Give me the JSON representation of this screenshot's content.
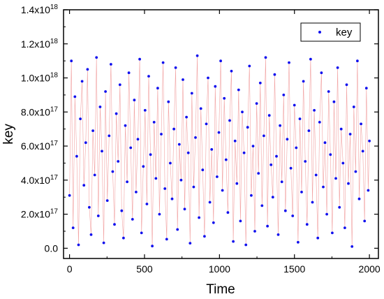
{
  "chart_data": {
    "type": "scatter",
    "title": "",
    "xlabel": "Time",
    "ylabel": "key",
    "xlim": [
      -40,
      2060
    ],
    "ylim": [
      -6e+16,
      1.4e+18
    ],
    "x_ticks": [
      {
        "value": 0,
        "label": "0"
      },
      {
        "value": 500,
        "label": "500"
      },
      {
        "value": 1000,
        "label": "1000"
      },
      {
        "value": 1500,
        "label": "1500"
      },
      {
        "value": 2000,
        "label": "2000"
      }
    ],
    "y_ticks": [
      {
        "value": 0.0,
        "mantissa": "0.0",
        "exponent": ""
      },
      {
        "value": 2e+17,
        "mantissa": "2.0x10",
        "exponent": "17"
      },
      {
        "value": 4e+17,
        "mantissa": "4.0x10",
        "exponent": "17"
      },
      {
        "value": 6e+17,
        "mantissa": "6.0x10",
        "exponent": "17"
      },
      {
        "value": 8e+17,
        "mantissa": "8.0x10",
        "exponent": "17"
      },
      {
        "value": 1e+18,
        "mantissa": "1.0x10",
        "exponent": "18"
      },
      {
        "value": 1.2e+18,
        "mantissa": "1.2x10",
        "exponent": "18"
      },
      {
        "value": 1.4e+18,
        "mantissa": "1.4x10",
        "exponent": "18"
      }
    ],
    "legend": {
      "position": "top-right"
    },
    "grid": false,
    "series": [
      {
        "name": "key",
        "marker_color": "#1010ee",
        "line_color": "#f2a3a3",
        "points": [
          [
            0,
            3.1e+17
          ],
          [
            12,
            1.1e+18
          ],
          [
            24,
            1.2e+17
          ],
          [
            36,
            8.9e+17
          ],
          [
            48,
            5.4e+17
          ],
          [
            60,
            2e+16
          ],
          [
            72,
            7.6e+17
          ],
          [
            84,
            9.8e+17
          ],
          [
            96,
            3.7e+17
          ],
          [
            108,
            6.2e+17
          ],
          [
            120,
            1.05e+18
          ],
          [
            132,
            2.4e+17
          ],
          [
            144,
            8e+16
          ],
          [
            156,
            6.9e+17
          ],
          [
            168,
            4.3e+17
          ],
          [
            180,
            1.12e+18
          ],
          [
            192,
            1.9e+17
          ],
          [
            204,
            8.3e+17
          ],
          [
            216,
            5.7e+17
          ],
          [
            228,
            3.2e+16
          ],
          [
            240,
            9.2e+17
          ],
          [
            252,
            2.8e+17
          ],
          [
            264,
            6.6e+17
          ],
          [
            276,
            1.08e+18
          ],
          [
            288,
            4.5e+17
          ],
          [
            300,
            1.4e+17
          ],
          [
            312,
            7.9e+17
          ],
          [
            324,
            5.1e+17
          ],
          [
            336,
            9.6e+17
          ],
          [
            348,
            2.2e+17
          ],
          [
            360,
            6e+16
          ],
          [
            372,
            7.2e+17
          ],
          [
            384,
            3.9e+17
          ],
          [
            396,
            1.03e+18
          ],
          [
            408,
            5.9e+17
          ],
          [
            420,
            1.7e+17
          ],
          [
            432,
            8.7e+17
          ],
          [
            444,
            3.3e+17
          ],
          [
            456,
            6.4e+17
          ],
          [
            468,
            1.11e+18
          ],
          [
            480,
            9e+16
          ],
          [
            492,
            4.8e+17
          ],
          [
            504,
            8.1e+17
          ],
          [
            516,
            2.6e+17
          ],
          [
            528,
            1.01e+18
          ],
          [
            540,
            5.5e+17
          ],
          [
            552,
            1.3e+16
          ],
          [
            564,
            7.4e+17
          ],
          [
            576,
            4.1e+17
          ],
          [
            588,
            9.4e+17
          ],
          [
            600,
            2e+17
          ],
          [
            612,
            6.7e+17
          ],
          [
            624,
            1.09e+18
          ],
          [
            636,
            3.5e+17
          ],
          [
            648,
            5.3e+16
          ],
          [
            660,
            8.6e+17
          ],
          [
            672,
            5e+17
          ],
          [
            684,
            2.9e+17
          ],
          [
            696,
            7e+17
          ],
          [
            708,
            1.06e+18
          ],
          [
            720,
            1.1e+17
          ],
          [
            732,
            6.1e+17
          ],
          [
            744,
            4e+17
          ],
          [
            756,
            9.9e+17
          ],
          [
            768,
            2.3e+17
          ],
          [
            780,
            7.7e+17
          ],
          [
            792,
            5.6e+17
          ],
          [
            804,
            3e+16
          ],
          [
            816,
            9.1e+17
          ],
          [
            828,
            3.6e+17
          ],
          [
            840,
            6.5e+17
          ],
          [
            852,
            1.13e+18
          ],
          [
            864,
            1.8e+17
          ],
          [
            876,
            8.2e+17
          ],
          [
            888,
            4.6e+17
          ],
          [
            900,
            7e+16
          ],
          [
            912,
            7.3e+17
          ],
          [
            924,
            1e+18
          ],
          [
            936,
            2.7e+17
          ],
          [
            948,
            5.8e+17
          ],
          [
            960,
            1.5e+17
          ],
          [
            972,
            9.5e+17
          ],
          [
            984,
            4.2e+17
          ],
          [
            996,
            6.8e+17
          ],
          [
            1008,
            1.1e+18
          ],
          [
            1020,
            3.4e+17
          ],
          [
            1032,
            8.8e+17
          ],
          [
            1044,
            5.2e+17
          ],
          [
            1056,
            2.1e+17
          ],
          [
            1068,
            7.5e+17
          ],
          [
            1080,
            1.04e+18
          ],
          [
            1092,
            4e+16
          ],
          [
            1104,
            6.3e+17
          ],
          [
            1116,
            3.8e+17
          ],
          [
            1128,
            9.3e+17
          ],
          [
            1140,
            1.6e+17
          ],
          [
            1152,
            8e+17
          ],
          [
            1164,
            5.6e+17
          ],
          [
            1176,
            2e+16
          ],
          [
            1188,
            7.1e+17
          ],
          [
            1200,
            1.07e+18
          ],
          [
            1212,
            3.1e+17
          ],
          [
            1224,
            6e+17
          ],
          [
            1236,
            1e+17
          ],
          [
            1248,
            8.5e+17
          ],
          [
            1260,
            4.4e+17
          ],
          [
            1272,
            9.7e+17
          ],
          [
            1284,
            2.5e+17
          ],
          [
            1296,
            6.6e+17
          ],
          [
            1308,
            1.12e+18
          ],
          [
            1320,
            1.3e+17
          ],
          [
            1332,
            7.8e+17
          ],
          [
            1344,
            4.9e+17
          ],
          [
            1356,
            3e+17
          ],
          [
            1368,
            1.02e+18
          ],
          [
            1380,
            5.4e+17
          ],
          [
            1392,
            8e+16
          ],
          [
            1404,
            7.2e+17
          ],
          [
            1416,
            3.9e+17
          ],
          [
            1428,
            9e+17
          ],
          [
            1440,
            2.2e+17
          ],
          [
            1452,
            6.4e+17
          ],
          [
            1464,
            1.09e+18
          ],
          [
            1476,
            4.7e+17
          ],
          [
            1488,
            1.9e+17
          ],
          [
            1500,
            8.4e+17
          ],
          [
            1512,
            5.9e+17
          ],
          [
            1524,
            3.5e+16
          ],
          [
            1536,
            7.6e+17
          ],
          [
            1548,
            3.3e+17
          ],
          [
            1560,
            9.8e+17
          ],
          [
            1572,
            5.1e+17
          ],
          [
            1584,
            1.4e+17
          ],
          [
            1596,
            6.9e+17
          ],
          [
            1608,
            1.11e+18
          ],
          [
            1620,
            2.7e+17
          ],
          [
            1632,
            8.1e+17
          ],
          [
            1644,
            4.3e+17
          ],
          [
            1656,
            6e+16
          ],
          [
            1668,
            7.4e+17
          ],
          [
            1680,
            1.03e+18
          ],
          [
            1692,
            3.6e+17
          ],
          [
            1704,
            6.2e+17
          ],
          [
            1716,
            2e+17
          ],
          [
            1728,
            9.2e+17
          ],
          [
            1740,
            5.5e+17
          ],
          [
            1752,
            9e+16
          ],
          [
            1764,
            8.6e+17
          ],
          [
            1776,
            4.1e+17
          ],
          [
            1788,
            1.06e+18
          ],
          [
            1800,
            2.4e+17
          ],
          [
            1812,
            7e+17
          ],
          [
            1824,
            5e+17
          ],
          [
            1836,
            1.2e+17
          ],
          [
            1848,
            9.6e+17
          ],
          [
            1860,
            3.8e+17
          ],
          [
            1872,
            6.7e+17
          ],
          [
            1884,
            1e+16
          ],
          [
            1896,
            8.3e+17
          ],
          [
            1908,
            4.5e+17
          ],
          [
            1920,
            1.1e+18
          ],
          [
            1932,
            2.9e+17
          ],
          [
            1944,
            7.3e+17
          ],
          [
            1956,
            5.7e+17
          ],
          [
            1968,
            1.6e+17
          ],
          [
            1980,
            9.4e+17
          ],
          [
            1992,
            3.4e+17
          ],
          [
            2000,
            6.3e+17
          ]
        ]
      }
    ]
  }
}
